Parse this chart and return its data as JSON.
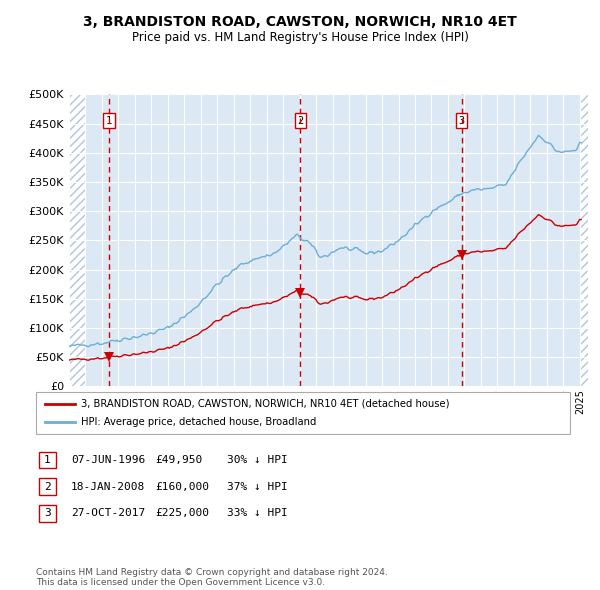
{
  "title": "3, BRANDISTON ROAD, CAWSTON, NORWICH, NR10 4ET",
  "subtitle": "Price paid vs. HM Land Registry's House Price Index (HPI)",
  "legend_line1": "3, BRANDISTON ROAD, CAWSTON, NORWICH, NR10 4ET (detached house)",
  "legend_line2": "HPI: Average price, detached house, Broadland",
  "sale_info": [
    {
      "num": "1",
      "date": "07-JUN-1996",
      "price": "£49,950",
      "pct": "30% ↓ HPI"
    },
    {
      "num": "2",
      "date": "18-JAN-2008",
      "price": "£160,000",
      "pct": "37% ↓ HPI"
    },
    {
      "num": "3",
      "date": "27-OCT-2017",
      "price": "£225,000",
      "pct": "33% ↓ HPI"
    }
  ],
  "footer": "Contains HM Land Registry data © Crown copyright and database right 2024.\nThis data is licensed under the Open Government Licence v3.0.",
  "hpi_color": "#6baed6",
  "price_color": "#cc0000",
  "vline_color": "#cc0000",
  "bg_color": "#dce9f5",
  "hatch_color": "#b0c4de",
  "ylim": [
    0,
    500000
  ],
  "xlim_start": 1994.0,
  "xlim_end": 2025.5,
  "sale_years": [
    1996.44,
    2008.05,
    2017.83
  ],
  "sale_prices": [
    49950,
    160000,
    225000
  ],
  "sale_labels": [
    "1",
    "2",
    "3"
  ]
}
